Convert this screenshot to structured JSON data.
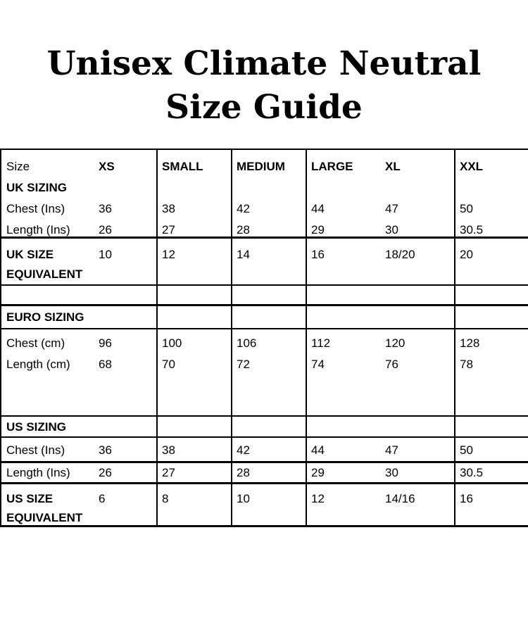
{
  "title": {
    "line1": "Unisex Climate Neutral",
    "line2": "Size Guide"
  },
  "colors": {
    "text": "#000000",
    "border": "#000000",
    "background": "#ffffff"
  },
  "table": {
    "header": {
      "size_label": "Size",
      "xs": "XS",
      "small": "SMALL",
      "medium": "MEDIUM",
      "large": "LARGE",
      "xl": "XL",
      "xxl": "XXL"
    },
    "uk": {
      "section_label": "UK SIZING",
      "chest": {
        "label": "Chest (Ins)",
        "values": [
          "36",
          "38",
          "42",
          "44",
          "47",
          "50"
        ]
      },
      "length": {
        "label": "Length (Ins)",
        "values": [
          "26",
          "27",
          "28",
          "29",
          "30",
          "30.5"
        ]
      },
      "equivalent": {
        "label_line1": "UK SIZE",
        "label_line2": "EQUIVALENT",
        "values": [
          "10",
          "12",
          "14",
          "16",
          "18/20",
          "20"
        ]
      }
    },
    "euro": {
      "section_label": "EURO SIZING",
      "chest": {
        "label": "Chest (cm)",
        "values": [
          "96",
          "100",
          "106",
          "112",
          "120",
          "128"
        ]
      },
      "length": {
        "label": "Length (cm)",
        "values": [
          "68",
          "70",
          "72",
          "74",
          "76",
          "78"
        ]
      }
    },
    "us": {
      "section_label": "US SIZING",
      "chest": {
        "label": "Chest (Ins)",
        "values": [
          "36",
          "38",
          "42",
          "44",
          "47",
          "50"
        ]
      },
      "length": {
        "label": "Length (Ins)",
        "values": [
          "26",
          "27",
          "28",
          "29",
          "30",
          "30.5"
        ]
      },
      "equivalent": {
        "label_line1": "US SIZE",
        "label_line2": "EQUIVALENT",
        "values": [
          "6",
          "8",
          "10",
          "12",
          "14/16",
          "16"
        ]
      }
    }
  }
}
